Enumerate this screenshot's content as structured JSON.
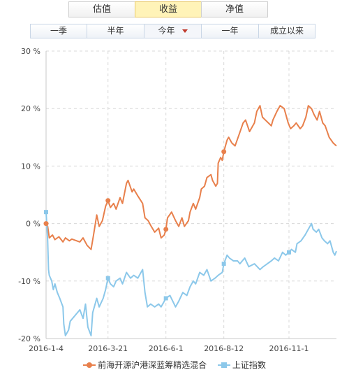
{
  "tabs": [
    "估值",
    "收益",
    "净值"
  ],
  "active_tab": 1,
  "periods": [
    "一季",
    "半年",
    "今年",
    "一年",
    "成立以来"
  ],
  "active_period": 2,
  "colors": {
    "fund": "#e8804c",
    "index": "#8cc8ea",
    "grid": "#d8d8d8",
    "active_caret": "#c0392b"
  },
  "chart_data": {
    "type": "line",
    "y_unit": "%",
    "ylim": [
      -20,
      30
    ],
    "yticks": [
      30,
      20,
      10,
      0,
      -10,
      -20
    ],
    "ytick_labels": [
      "30 %",
      "20 %",
      "10 %",
      "0 %",
      "-10 %",
      "-20 %"
    ],
    "xlim": [
      "2016-01-04",
      "2016-12-30"
    ],
    "xticks": [
      "2016-01-04",
      "2016-03-21",
      "2016-06-01",
      "2016-08-12",
      "2016-11-01"
    ],
    "xtick_labels": [
      "2016-1-4",
      "2016-3-21",
      "2016-6-1",
      "2016-8-12",
      "2016-11-1"
    ],
    "grid": true,
    "legend_position": "bottom",
    "series": [
      {
        "name": "前海开源沪港深蓝筹精选混合",
        "marker": "circle",
        "points": [
          [
            "2016-01-04",
            0.0
          ],
          [
            "2016-01-06",
            -0.5
          ],
          [
            "2016-01-08",
            -2.5
          ],
          [
            "2016-01-12",
            -2.0
          ],
          [
            "2016-01-15",
            -2.8
          ],
          [
            "2016-01-20",
            -2.3
          ],
          [
            "2016-01-25",
            -3.2
          ],
          [
            "2016-01-28",
            -2.5
          ],
          [
            "2016-02-02",
            -3.0
          ],
          [
            "2016-02-05",
            -2.7
          ],
          [
            "2016-02-15",
            -3.2
          ],
          [
            "2016-02-19",
            -2.5
          ],
          [
            "2016-02-24",
            -3.8
          ],
          [
            "2016-02-29",
            -4.5
          ],
          [
            "2016-03-03",
            -2.0
          ],
          [
            "2016-03-07",
            1.5
          ],
          [
            "2016-03-10",
            -0.5
          ],
          [
            "2016-03-14",
            0.5
          ],
          [
            "2016-03-18",
            3.0
          ],
          [
            "2016-03-21",
            4.0
          ],
          [
            "2016-03-24",
            2.8
          ],
          [
            "2016-03-28",
            3.5
          ],
          [
            "2016-03-31",
            2.5
          ],
          [
            "2016-04-05",
            4.5
          ],
          [
            "2016-04-08",
            3.5
          ],
          [
            "2016-04-13",
            7.0
          ],
          [
            "2016-04-15",
            7.5
          ],
          [
            "2016-04-20",
            5.5
          ],
          [
            "2016-04-22",
            6.0
          ],
          [
            "2016-04-27",
            4.8
          ],
          [
            "2016-05-03",
            3.5
          ],
          [
            "2016-05-06",
            1.0
          ],
          [
            "2016-05-10",
            0.5
          ],
          [
            "2016-05-13",
            -0.3
          ],
          [
            "2016-05-18",
            -1.5
          ],
          [
            "2016-05-23",
            -0.8
          ],
          [
            "2016-05-26",
            -2.5
          ],
          [
            "2016-05-30",
            -2.0
          ],
          [
            "2016-06-01",
            -1.0
          ],
          [
            "2016-06-03",
            1.0
          ],
          [
            "2016-06-08",
            2.0
          ],
          [
            "2016-06-13",
            0.5
          ],
          [
            "2016-06-17",
            -0.5
          ],
          [
            "2016-06-21",
            1.0
          ],
          [
            "2016-06-24",
            -0.5
          ],
          [
            "2016-06-29",
            0.5
          ],
          [
            "2016-07-01",
            2.0
          ],
          [
            "2016-07-05",
            3.5
          ],
          [
            "2016-07-08",
            2.5
          ],
          [
            "2016-07-13",
            4.5
          ],
          [
            "2016-07-15",
            6.0
          ],
          [
            "2016-07-19",
            6.5
          ],
          [
            "2016-07-22",
            8.0
          ],
          [
            "2016-07-27",
            8.5
          ],
          [
            "2016-07-29",
            7.5
          ],
          [
            "2016-08-02",
            6.5
          ],
          [
            "2016-08-04",
            7.0
          ],
          [
            "2016-08-05",
            10.5
          ],
          [
            "2016-08-08",
            11.5
          ],
          [
            "2016-08-10",
            11.0
          ],
          [
            "2016-08-12",
            12.5
          ],
          [
            "2016-08-16",
            14.5
          ],
          [
            "2016-08-18",
            15.0
          ],
          [
            "2016-08-22",
            14.0
          ],
          [
            "2016-08-26",
            13.5
          ],
          [
            "2016-08-31",
            15.5
          ],
          [
            "2016-09-05",
            17.5
          ],
          [
            "2016-09-08",
            18.0
          ],
          [
            "2016-09-13",
            16.0
          ],
          [
            "2016-09-19",
            17.5
          ],
          [
            "2016-09-22",
            19.5
          ],
          [
            "2016-09-26",
            20.5
          ],
          [
            "2016-09-29",
            18.5
          ],
          [
            "2016-10-10",
            17.0
          ],
          [
            "2016-10-12",
            18.0
          ],
          [
            "2016-10-17",
            19.5
          ],
          [
            "2016-10-21",
            20.5
          ],
          [
            "2016-10-26",
            20.0
          ],
          [
            "2016-10-31",
            17.5
          ],
          [
            "2016-11-03",
            16.5
          ],
          [
            "2016-11-07",
            17.0
          ],
          [
            "2016-11-10",
            17.5
          ],
          [
            "2016-11-15",
            16.5
          ],
          [
            "2016-11-18",
            17.0
          ],
          [
            "2016-11-22",
            18.5
          ],
          [
            "2016-11-25",
            20.5
          ],
          [
            "2016-11-29",
            20.0
          ],
          [
            "2016-12-02",
            19.0
          ],
          [
            "2016-12-06",
            18.0
          ],
          [
            "2016-12-09",
            19.5
          ],
          [
            "2016-12-13",
            17.5
          ],
          [
            "2016-12-16",
            17.0
          ],
          [
            "2016-12-21",
            15.0
          ],
          [
            "2016-12-26",
            14.0
          ],
          [
            "2016-12-30",
            13.5
          ]
        ]
      },
      {
        "name": "上证指数",
        "marker": "square",
        "points": [
          [
            "2016-01-04",
            2.0
          ],
          [
            "2016-01-05",
            -0.5
          ],
          [
            "2016-01-06",
            -3.0
          ],
          [
            "2016-01-07",
            -8.0
          ],
          [
            "2016-01-08",
            -9.0
          ],
          [
            "2016-01-11",
            -10.0
          ],
          [
            "2016-01-13",
            -11.5
          ],
          [
            "2016-01-15",
            -10.5
          ],
          [
            "2016-01-18",
            -12.0
          ],
          [
            "2016-01-21",
            -13.0
          ],
          [
            "2016-01-25",
            -14.5
          ],
          [
            "2016-01-26",
            -17.5
          ],
          [
            "2016-01-28",
            -19.5
          ],
          [
            "2016-02-01",
            -18.5
          ],
          [
            "2016-02-03",
            -17.0
          ],
          [
            "2016-02-15",
            -15.0
          ],
          [
            "2016-02-19",
            -16.5
          ],
          [
            "2016-02-22",
            -14.0
          ],
          [
            "2016-02-25",
            -18.0
          ],
          [
            "2016-02-29",
            -19.5
          ],
          [
            "2016-03-02",
            -15.5
          ],
          [
            "2016-03-07",
            -13.0
          ],
          [
            "2016-03-10",
            -14.5
          ],
          [
            "2016-03-15",
            -13.0
          ],
          [
            "2016-03-18",
            -11.5
          ],
          [
            "2016-03-21",
            -9.5
          ],
          [
            "2016-03-24",
            -10.5
          ],
          [
            "2016-03-28",
            -11.0
          ],
          [
            "2016-03-31",
            -10.0
          ],
          [
            "2016-04-05",
            -9.5
          ],
          [
            "2016-04-08",
            -10.5
          ],
          [
            "2016-04-13",
            -8.5
          ],
          [
            "2016-04-18",
            -9.5
          ],
          [
            "2016-04-22",
            -9.0
          ],
          [
            "2016-04-27",
            -9.5
          ],
          [
            "2016-05-03",
            -8.0
          ],
          [
            "2016-05-06",
            -12.0
          ],
          [
            "2016-05-09",
            -14.5
          ],
          [
            "2016-05-13",
            -14.0
          ],
          [
            "2016-05-18",
            -14.5
          ],
          [
            "2016-05-23",
            -14.0
          ],
          [
            "2016-05-26",
            -14.5
          ],
          [
            "2016-05-30",
            -13.5
          ],
          [
            "2016-06-01",
            -13.0
          ],
          [
            "2016-06-06",
            -12.5
          ],
          [
            "2016-06-13",
            -14.5
          ],
          [
            "2016-06-17",
            -13.5
          ],
          [
            "2016-06-22",
            -12.0
          ],
          [
            "2016-06-27",
            -12.5
          ],
          [
            "2016-07-01",
            -11.0
          ],
          [
            "2016-07-05",
            -10.0
          ],
          [
            "2016-07-08",
            -10.5
          ],
          [
            "2016-07-13",
            -8.5
          ],
          [
            "2016-07-18",
            -9.0
          ],
          [
            "2016-07-22",
            -8.0
          ],
          [
            "2016-07-27",
            -10.0
          ],
          [
            "2016-08-01",
            -9.5
          ],
          [
            "2016-08-05",
            -9.0
          ],
          [
            "2016-08-10",
            -8.5
          ],
          [
            "2016-08-12",
            -7.0
          ],
          [
            "2016-08-16",
            -5.5
          ],
          [
            "2016-08-19",
            -6.0
          ],
          [
            "2016-08-24",
            -6.5
          ],
          [
            "2016-08-29",
            -6.5
          ],
          [
            "2016-09-01",
            -7.0
          ],
          [
            "2016-09-07",
            -6.0
          ],
          [
            "2016-09-12",
            -7.5
          ],
          [
            "2016-09-19",
            -7.0
          ],
          [
            "2016-09-26",
            -8.0
          ],
          [
            "2016-09-30",
            -7.5
          ],
          [
            "2016-10-10",
            -6.5
          ],
          [
            "2016-10-14",
            -6.0
          ],
          [
            "2016-10-19",
            -6.5
          ],
          [
            "2016-10-24",
            -5.0
          ],
          [
            "2016-10-28",
            -5.5
          ],
          [
            "2016-11-01",
            -5.0
          ],
          [
            "2016-11-04",
            -4.5
          ],
          [
            "2016-11-09",
            -5.0
          ],
          [
            "2016-11-11",
            -3.5
          ],
          [
            "2016-11-16",
            -3.0
          ],
          [
            "2016-11-21",
            -2.0
          ],
          [
            "2016-11-25",
            -1.0
          ],
          [
            "2016-11-29",
            0.0
          ],
          [
            "2016-12-01",
            -1.0
          ],
          [
            "2016-12-05",
            -1.5
          ],
          [
            "2016-12-08",
            -1.0
          ],
          [
            "2016-12-12",
            -2.5
          ],
          [
            "2016-12-15",
            -3.0
          ],
          [
            "2016-12-19",
            -3.5
          ],
          [
            "2016-12-22",
            -3.0
          ],
          [
            "2016-12-26",
            -5.0
          ],
          [
            "2016-12-28",
            -5.5
          ],
          [
            "2016-12-30",
            -4.8
          ]
        ]
      }
    ]
  }
}
